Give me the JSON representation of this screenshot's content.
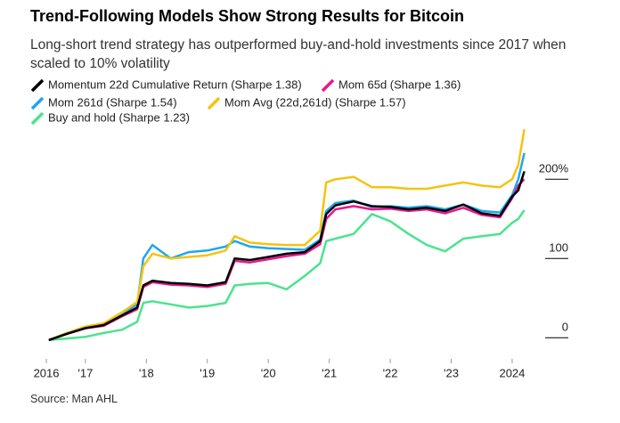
{
  "chart_data": {
    "type": "line",
    "title": "Trend-Following Models Show Strong Results for Bitcoin",
    "subtitle": "Long-short trend strategy has outperformed buy-and-hold investments since 2017 when scaled to 10% volatility",
    "source": "Source: Man AHL",
    "x": [
      2016.4,
      2016.7,
      2017.0,
      2017.3,
      2017.6,
      2017.85,
      2017.95,
      2018.1,
      2018.4,
      2018.7,
      2019.0,
      2019.3,
      2019.45,
      2019.7,
      2020.0,
      2020.3,
      2020.6,
      2020.85,
      2020.95,
      2021.1,
      2021.4,
      2021.7,
      2022.0,
      2022.3,
      2022.6,
      2022.9,
      2023.2,
      2023.5,
      2023.8,
      2024.0,
      2024.1,
      2024.2
    ],
    "series": [
      {
        "name": "Buy and hold (Sharpe 1.23)",
        "color": "#4be38f",
        "values": [
          -3,
          -1,
          1,
          6,
          10,
          20,
          44,
          46,
          42,
          38,
          40,
          44,
          66,
          68,
          69,
          61,
          78,
          94,
          122,
          125,
          131,
          156,
          147,
          131,
          117,
          109,
          125,
          128,
          131,
          145,
          150,
          161
        ]
      },
      {
        "name": "Mom 261d (Sharpe 1.54)",
        "color": "#1ea7f0",
        "values": [
          -3,
          6,
          14,
          18,
          30,
          42,
          100,
          117,
          100,
          108,
          110,
          115,
          122,
          115,
          113,
          112,
          111,
          124,
          160,
          170,
          173,
          165,
          166,
          164,
          166,
          162,
          168,
          160,
          158,
          180,
          200,
          233
        ]
      },
      {
        "name": "Mom Avg (22d,261d) (Sharpe 1.57)",
        "color": "#f5c30f",
        "values": [
          -3,
          6,
          14,
          18,
          32,
          45,
          90,
          106,
          100,
          102,
          104,
          110,
          128,
          120,
          118,
          117,
          117,
          135,
          196,
          200,
          203,
          190,
          190,
          188,
          188,
          192,
          196,
          192,
          190,
          200,
          218,
          263
        ]
      },
      {
        "name": "Mom 65d (Sharpe 1.36)",
        "color": "#e5198a",
        "values": [
          -3,
          5,
          12,
          15,
          27,
          36,
          64,
          70,
          67,
          66,
          64,
          68,
          97,
          95,
          99,
          103,
          106,
          118,
          150,
          162,
          166,
          162,
          163,
          160,
          162,
          157,
          164,
          155,
          152,
          176,
          192,
          200
        ]
      },
      {
        "name": "Momentum 22d Cumulative Return (Sharpe 1.38)",
        "color": "#000000",
        "values": [
          -3,
          5,
          12,
          16,
          28,
          38,
          66,
          72,
          69,
          68,
          66,
          70,
          100,
          98,
          102,
          106,
          108,
          122,
          156,
          167,
          172,
          166,
          165,
          162,
          164,
          160,
          168,
          157,
          154,
          178,
          186,
          210
        ]
      }
    ],
    "xlim": [
      2016.33,
      2024.22
    ],
    "xticks": [
      {
        "value": 2016.36,
        "label": "2016"
      },
      {
        "value": 2017,
        "label": "'17"
      },
      {
        "value": 2018,
        "label": "'18"
      },
      {
        "value": 2019,
        "label": "'19"
      },
      {
        "value": 2020,
        "label": "'20"
      },
      {
        "value": 2021,
        "label": "'21"
      },
      {
        "value": 2022,
        "label": "'22"
      },
      {
        "value": 2023,
        "label": "'23"
      },
      {
        "value": 2024,
        "label": "2024"
      }
    ],
    "ylim": [
      -20,
      270
    ],
    "yticks": [
      0,
      100,
      {
        "value": 200,
        "label": "200%"
      }
    ],
    "grid": false
  }
}
